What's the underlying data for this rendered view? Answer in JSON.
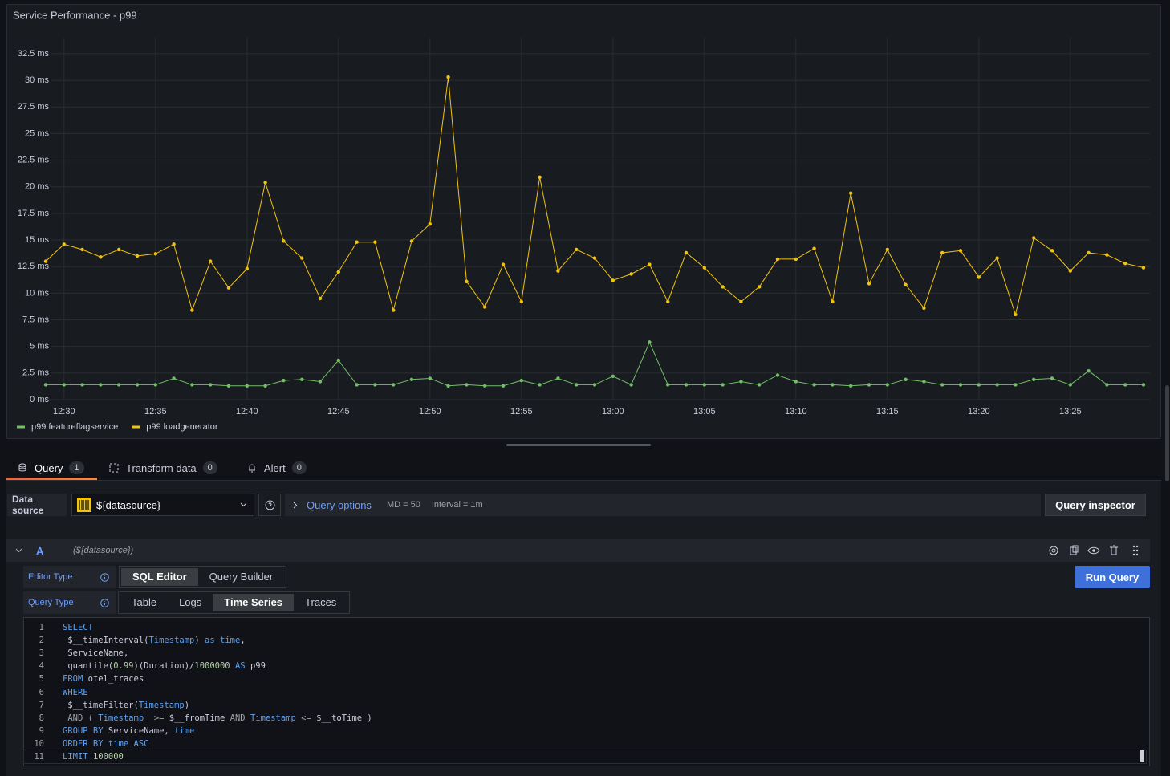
{
  "chart_data": {
    "type": "line",
    "title": "Service Performance - p99",
    "x": [
      "12:29",
      "12:30",
      "12:31",
      "12:32",
      "12:33",
      "12:34",
      "12:35",
      "12:36",
      "12:37",
      "12:38",
      "12:39",
      "12:40",
      "12:41",
      "12:42",
      "12:43",
      "12:44",
      "12:45",
      "12:46",
      "12:47",
      "12:48",
      "12:49",
      "12:50",
      "12:51",
      "12:52",
      "12:53",
      "12:54",
      "12:55",
      "12:56",
      "12:57",
      "12:58",
      "12:59",
      "13:00",
      "13:01",
      "13:02",
      "13:03",
      "13:04",
      "13:05",
      "13:06",
      "13:07",
      "13:08",
      "13:09",
      "13:10",
      "13:11",
      "13:12",
      "13:13",
      "13:14",
      "13:15",
      "13:16",
      "13:17",
      "13:18",
      "13:19",
      "13:20",
      "13:21",
      "13:22",
      "13:23",
      "13:24",
      "13:25",
      "13:26",
      "13:27",
      "13:28",
      "13:29"
    ],
    "series": [
      {
        "name": "p99 featureflagservice",
        "color": "#73bf69",
        "values": [
          1.4,
          1.4,
          1.4,
          1.4,
          1.4,
          1.4,
          1.4,
          2.0,
          1.4,
          1.4,
          1.3,
          1.3,
          1.3,
          1.8,
          1.9,
          1.7,
          3.7,
          1.4,
          1.4,
          1.4,
          1.9,
          2.0,
          1.3,
          1.4,
          1.3,
          1.3,
          1.8,
          1.4,
          2.0,
          1.4,
          1.4,
          2.2,
          1.4,
          5.4,
          1.4,
          1.4,
          1.4,
          1.4,
          1.7,
          1.4,
          2.3,
          1.7,
          1.4,
          1.4,
          1.3,
          1.4,
          1.4,
          1.9,
          1.7,
          1.4,
          1.4,
          1.4,
          1.4,
          1.4,
          1.9,
          2.0,
          1.4,
          2.7,
          1.4,
          1.4,
          1.4
        ]
      },
      {
        "name": "p99 loadgenerator",
        "color": "#f2c40f",
        "values": [
          13.0,
          14.6,
          14.1,
          13.4,
          14.1,
          13.5,
          13.7,
          14.6,
          8.4,
          13.0,
          10.5,
          12.3,
          20.4,
          14.9,
          13.3,
          9.5,
          12.0,
          14.8,
          14.8,
          8.4,
          14.9,
          16.5,
          30.3,
          11.1,
          8.7,
          12.7,
          9.2,
          20.9,
          12.1,
          14.1,
          13.3,
          11.2,
          11.8,
          12.7,
          9.2,
          13.8,
          12.4,
          10.6,
          9.2,
          10.6,
          13.2,
          13.2,
          14.2,
          9.2,
          19.4,
          10.9,
          14.1,
          10.8,
          8.6,
          13.8,
          14.0,
          11.5,
          13.3,
          8.0,
          15.2,
          14.0,
          12.1,
          13.8,
          13.6,
          12.8,
          12.4
        ]
      }
    ],
    "xlim": [
      "12:29",
      "13:29"
    ],
    "xticks": [
      "12:30",
      "12:35",
      "12:40",
      "12:45",
      "12:50",
      "12:55",
      "13:00",
      "13:05",
      "13:10",
      "13:15",
      "13:20",
      "13:25"
    ],
    "ylim": [
      0,
      33.4
    ],
    "yticks": [
      {
        "value": 0,
        "label": "0 ms"
      },
      {
        "value": 2.5,
        "label": "2.5 ms"
      },
      {
        "value": 5,
        "label": "5 ms"
      },
      {
        "value": 7.5,
        "label": "7.5 ms"
      },
      {
        "value": 10,
        "label": "10 ms"
      },
      {
        "value": 12.5,
        "label": "12.5 ms"
      },
      {
        "value": 15,
        "label": "15 ms"
      },
      {
        "value": 17.5,
        "label": "17.5 ms"
      },
      {
        "value": 20,
        "label": "20 ms"
      },
      {
        "value": 22.5,
        "label": "22.5 ms"
      },
      {
        "value": 25,
        "label": "25 ms"
      },
      {
        "value": 27.5,
        "label": "27.5 ms"
      },
      {
        "value": 30,
        "label": "30 ms"
      },
      {
        "value": 32.5,
        "label": "32.5 ms"
      }
    ],
    "grid": true,
    "legend": "bottom"
  },
  "ui": {
    "tabs": [
      {
        "label": "Query",
        "count": 1
      },
      {
        "label": "Transform data",
        "count": 0
      },
      {
        "label": "Alert",
        "count": 0
      }
    ],
    "data_source": {
      "label": "Data source",
      "value": "${datasource}"
    },
    "query_options": {
      "label": "Query options",
      "max_data_points": "MD = 50",
      "interval": "Interval = 1m"
    },
    "query_inspector": "Query inspector",
    "query": {
      "ref": "A",
      "datasource": "(${datasource})",
      "editor_type": {
        "label": "Editor Type",
        "options": [
          "SQL Editor",
          "Query Builder"
        ],
        "selected": 0
      },
      "run": "Run Query",
      "query_type": {
        "label": "Query Type",
        "options": [
          "Table",
          "Logs",
          "Time Series",
          "Traces"
        ],
        "selected": 2
      },
      "code": [
        {
          "n": 1,
          "tokens": [
            {
              "t": "SELECT",
              "k": "keyword"
            }
          ]
        },
        {
          "n": 2,
          "tokens": [
            {
              "t": " $__timeInterval(",
              "k": "text"
            },
            {
              "t": "Timestamp",
              "k": "keyword"
            },
            {
              "t": ") ",
              "k": "text"
            },
            {
              "t": "as",
              "k": "keyword"
            },
            {
              "t": " ",
              "k": "text"
            },
            {
              "t": "time",
              "k": "keyword"
            },
            {
              "t": ",",
              "k": "text"
            }
          ]
        },
        {
          "n": 3,
          "tokens": [
            {
              "t": " ServiceName,",
              "k": "text"
            }
          ]
        },
        {
          "n": 4,
          "tokens": [
            {
              "t": " quantile(",
              "k": "text"
            },
            {
              "t": "0.99",
              "k": "number"
            },
            {
              "t": ")(Duration)/",
              "k": "text"
            },
            {
              "t": "1000000",
              "k": "number"
            },
            {
              "t": " ",
              "k": "text"
            },
            {
              "t": "AS",
              "k": "keyword"
            },
            {
              "t": " p99",
              "k": "text"
            }
          ]
        },
        {
          "n": 5,
          "tokens": [
            {
              "t": "FROM",
              "k": "keyword"
            },
            {
              "t": " otel_traces",
              "k": "text"
            }
          ]
        },
        {
          "n": 6,
          "tokens": [
            {
              "t": "WHERE",
              "k": "keyword"
            }
          ]
        },
        {
          "n": 7,
          "tokens": [
            {
              "t": " $__timeFilter(",
              "k": "text"
            },
            {
              "t": "Timestamp",
              "k": "keyword"
            },
            {
              "t": ")",
              "k": "text"
            }
          ]
        },
        {
          "n": 8,
          "tokens": [
            {
              "t": " AND ( ",
              "k": "operator"
            },
            {
              "t": "Timestamp",
              "k": "keyword"
            },
            {
              "t": "  >= ",
              "k": "operator"
            },
            {
              "t": "$__fromTime ",
              "k": "text"
            },
            {
              "t": "AND",
              "k": "operator"
            },
            {
              "t": " ",
              "k": "text"
            },
            {
              "t": "Timestamp",
              "k": "keyword"
            },
            {
              "t": " <= ",
              "k": "operator"
            },
            {
              "t": "$__toTime )",
              "k": "text"
            }
          ]
        },
        {
          "n": 9,
          "tokens": [
            {
              "t": "GROUP BY",
              "k": "keyword"
            },
            {
              "t": " ServiceName, ",
              "k": "text"
            },
            {
              "t": "time",
              "k": "keyword"
            }
          ]
        },
        {
          "n": 10,
          "tokens": [
            {
              "t": "ORDER BY time ASC",
              "k": "keyword"
            }
          ]
        },
        {
          "n": 11,
          "tokens": [
            {
              "t": "LIMIT",
              "k": "keyword"
            },
            {
              "t": " ",
              "k": "text"
            },
            {
              "t": "100000",
              "k": "number"
            }
          ]
        }
      ]
    }
  }
}
